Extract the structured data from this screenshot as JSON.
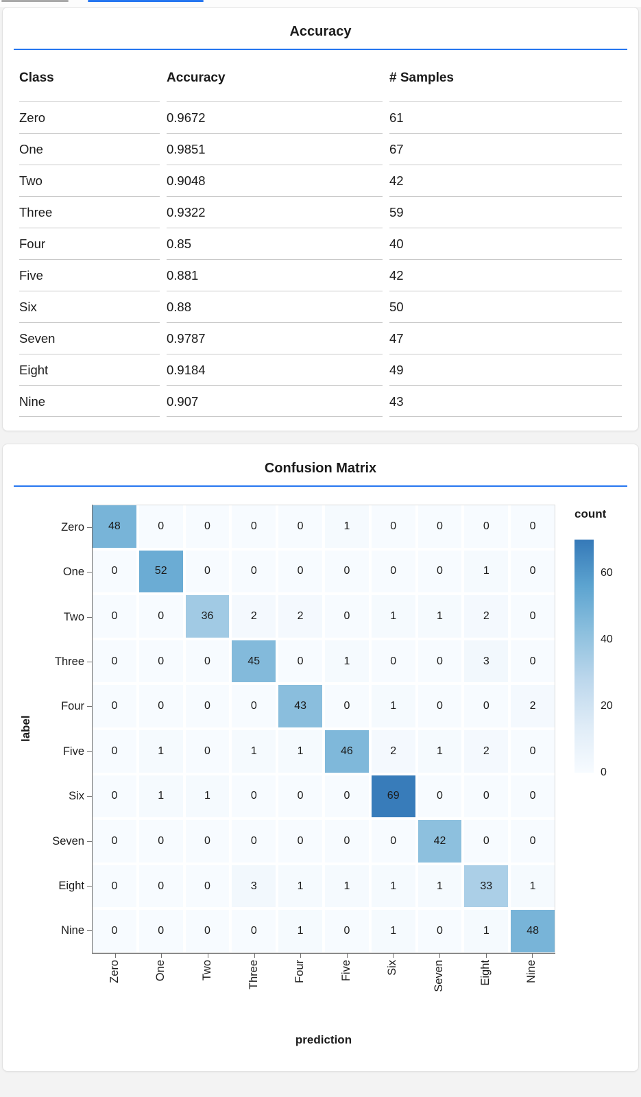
{
  "accent_blue": "#2676f0",
  "top_bars": {
    "inactive_color": "#a9a9a9",
    "active_color": "#2676f0"
  },
  "accuracy_card": {
    "title": "Accuracy",
    "columns": [
      "Class",
      "Accuracy",
      "# Samples"
    ],
    "rows": [
      [
        "Zero",
        "0.9672",
        "61"
      ],
      [
        "One",
        "0.9851",
        "67"
      ],
      [
        "Two",
        "0.9048",
        "42"
      ],
      [
        "Three",
        "0.9322",
        "59"
      ],
      [
        "Four",
        "0.85",
        "40"
      ],
      [
        "Five",
        "0.881",
        "42"
      ],
      [
        "Six",
        "0.88",
        "50"
      ],
      [
        "Seven",
        "0.9787",
        "47"
      ],
      [
        "Eight",
        "0.9184",
        "49"
      ],
      [
        "Nine",
        "0.907",
        "43"
      ]
    ]
  },
  "confusion_card": {
    "title": "Confusion Matrix"
  },
  "chart_data": {
    "type": "heatmap",
    "title": "Confusion Matrix",
    "xlabel": "prediction",
    "ylabel": "label",
    "x_categories": [
      "Zero",
      "One",
      "Two",
      "Three",
      "Four",
      "Five",
      "Six",
      "Seven",
      "Eight",
      "Nine"
    ],
    "y_categories": [
      "Zero",
      "One",
      "Two",
      "Three",
      "Four",
      "Five",
      "Six",
      "Seven",
      "Eight",
      "Nine"
    ],
    "matrix": [
      [
        48,
        0,
        0,
        0,
        0,
        1,
        0,
        0,
        0,
        0
      ],
      [
        0,
        52,
        0,
        0,
        0,
        0,
        0,
        0,
        1,
        0
      ],
      [
        0,
        0,
        36,
        2,
        2,
        0,
        1,
        1,
        2,
        0
      ],
      [
        0,
        0,
        0,
        45,
        0,
        1,
        0,
        0,
        3,
        0
      ],
      [
        0,
        0,
        0,
        0,
        43,
        0,
        1,
        0,
        0,
        2
      ],
      [
        0,
        1,
        0,
        1,
        1,
        46,
        2,
        1,
        2,
        0
      ],
      [
        0,
        1,
        1,
        0,
        0,
        0,
        69,
        0,
        0,
        0
      ],
      [
        0,
        0,
        0,
        0,
        0,
        0,
        0,
        42,
        0,
        0
      ],
      [
        0,
        0,
        0,
        3,
        1,
        1,
        1,
        1,
        33,
        1
      ],
      [
        0,
        0,
        0,
        0,
        1,
        0,
        1,
        0,
        1,
        48
      ]
    ],
    "legend": {
      "title": "count",
      "ticks": [
        0,
        20,
        40,
        60
      ],
      "domain": [
        0,
        70
      ]
    },
    "color_scale": {
      "stops": [
        [
          0.0,
          "#f7fbff"
        ],
        [
          0.2,
          "#dfecf7"
        ],
        [
          0.4,
          "#bcd7ec"
        ],
        [
          0.6,
          "#8dc0de"
        ],
        [
          0.8,
          "#5da4d0"
        ],
        [
          1.0,
          "#3579b8"
        ]
      ]
    }
  }
}
